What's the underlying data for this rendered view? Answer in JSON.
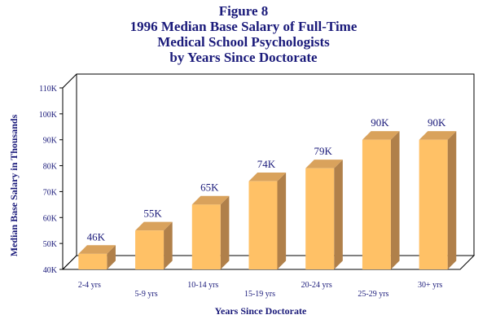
{
  "chart_data": {
    "type": "bar",
    "title_lines": [
      "Figure 8",
      "1996 Median Base Salary of Full-Time",
      "Medical School Psychologists",
      "by Years Since Doctorate"
    ],
    "xlabel": "Years Since Doctorate",
    "ylabel": "Median Base Salary in Thousands",
    "categories": [
      "2-4 yrs",
      "5-9 yrs",
      "10-14 yrs",
      "15-19 yrs",
      "20-24 yrs",
      "25-29 yrs",
      "30+ yrs"
    ],
    "values": [
      46,
      55,
      65,
      74,
      79,
      90,
      90
    ],
    "data_labels": [
      "46K",
      "55K",
      "65K",
      "74K",
      "79K",
      "90K",
      "90K"
    ],
    "ylim": [
      40,
      110
    ],
    "yticks": [
      40,
      50,
      60,
      70,
      80,
      90,
      100,
      110
    ],
    "ytick_labels": [
      "40K",
      "50K",
      "60K",
      "70K",
      "80K",
      "90K",
      "100K",
      "110K"
    ],
    "grid": false,
    "legend": "none",
    "colors": {
      "bar_front": "#ffc166",
      "bar_side": "#b0804a",
      "bar_top": "#d9a25c",
      "text": "#1a1a7a"
    }
  }
}
